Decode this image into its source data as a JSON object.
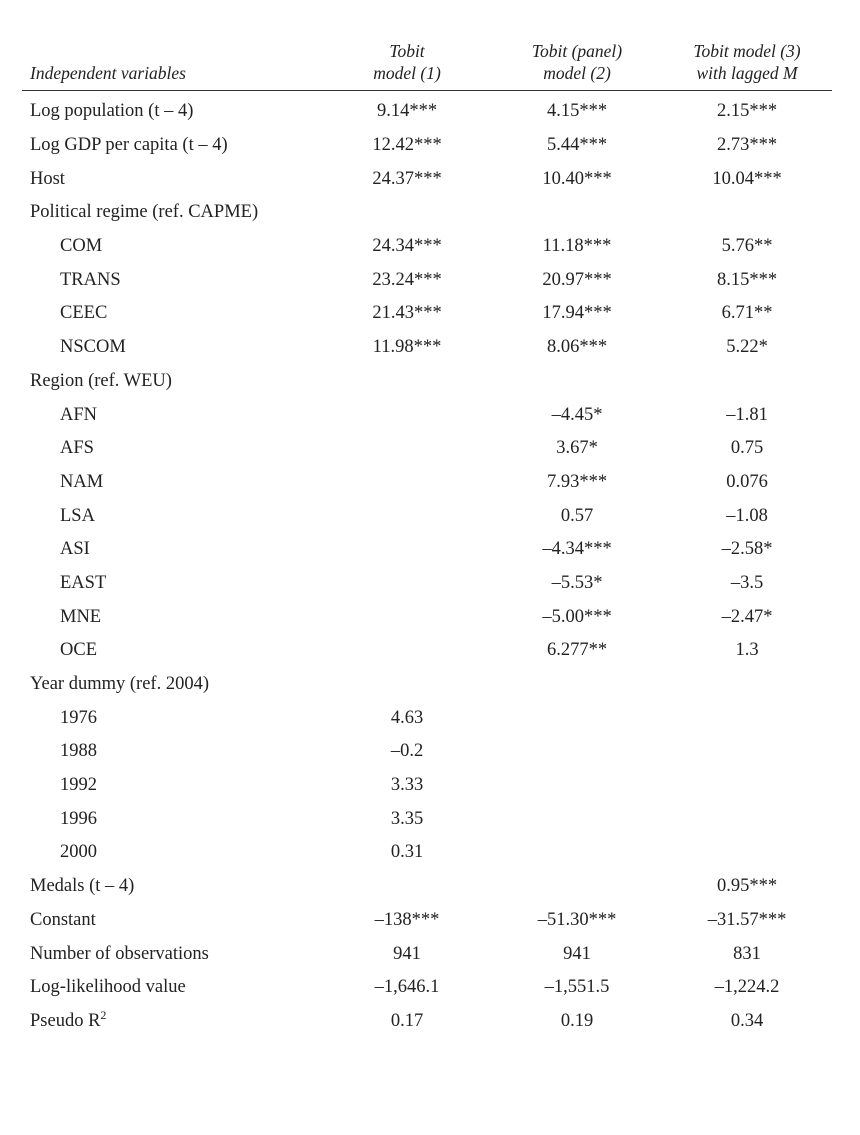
{
  "table": {
    "headers": {
      "variable": "Independent variables",
      "model1": [
        "Tobit",
        "model (1)"
      ],
      "model2": [
        "Tobit (panel)",
        "model (2)"
      ],
      "model3": [
        "Tobit model (3)",
        "with lagged M"
      ]
    },
    "rows": [
      {
        "label": "Log population (t – 4)",
        "indent": false,
        "m1": "9.14***",
        "m2": "4.15***",
        "m3": "2.15***"
      },
      {
        "label": "Log GDP per capita (t – 4)",
        "indent": false,
        "m1": "12.42***",
        "m2": "5.44***",
        "m3": "2.73***"
      },
      {
        "label": "Host",
        "indent": false,
        "m1": "24.37***",
        "m2": "10.40***",
        "m3": "10.04***"
      },
      {
        "label": "Political regime (ref. CAPME)",
        "indent": false,
        "m1": "",
        "m2": "",
        "m3": ""
      },
      {
        "label": "COM",
        "indent": true,
        "m1": "24.34***",
        "m2": "11.18***",
        "m3": "5.76**"
      },
      {
        "label": "TRANS",
        "indent": true,
        "m1": "23.24***",
        "m2": "20.97***",
        "m3": "8.15***"
      },
      {
        "label": "CEEC",
        "indent": true,
        "m1": "21.43***",
        "m2": "17.94***",
        "m3": "6.71**"
      },
      {
        "label": "NSCOM",
        "indent": true,
        "m1": "11.98***",
        "m2": "8.06***",
        "m3": "5.22*"
      },
      {
        "label": "Region (ref. WEU)",
        "indent": false,
        "m1": "",
        "m2": "",
        "m3": ""
      },
      {
        "label": "AFN",
        "indent": true,
        "m1": "",
        "m2": "–4.45*",
        "m3": "–1.81"
      },
      {
        "label": "AFS",
        "indent": true,
        "m1": "",
        "m2": "3.67*",
        "m3": "0.75"
      },
      {
        "label": "NAM",
        "indent": true,
        "m1": "",
        "m2": "7.93***",
        "m3": "0.076"
      },
      {
        "label": "LSA",
        "indent": true,
        "m1": "",
        "m2": "0.57",
        "m3": "–1.08"
      },
      {
        "label": "ASI",
        "indent": true,
        "m1": "",
        "m2": "–4.34***",
        "m3": "–2.58*"
      },
      {
        "label": "EAST",
        "indent": true,
        "m1": "",
        "m2": "–5.53*",
        "m3": "–3.5"
      },
      {
        "label": "MNE",
        "indent": true,
        "m1": "",
        "m2": "–5.00***",
        "m3": "–2.47*"
      },
      {
        "label": "OCE",
        "indent": true,
        "m1": "",
        "m2": "6.277**",
        "m3": "1.3"
      },
      {
        "label": "Year dummy (ref. 2004)",
        "indent": false,
        "m1": "",
        "m2": "",
        "m3": ""
      },
      {
        "label": "1976",
        "indent": true,
        "m1": "4.63",
        "m2": "",
        "m3": ""
      },
      {
        "label": "1988",
        "indent": true,
        "m1": "–0.2",
        "m2": "",
        "m3": ""
      },
      {
        "label": "1992",
        "indent": true,
        "m1": "3.33",
        "m2": "",
        "m3": ""
      },
      {
        "label": "1996",
        "indent": true,
        "m1": "3.35",
        "m2": "",
        "m3": ""
      },
      {
        "label": "2000",
        "indent": true,
        "m1": "0.31",
        "m2": "",
        "m3": ""
      },
      {
        "label": "Medals (t – 4)",
        "indent": false,
        "m1": "",
        "m2": "",
        "m3": "0.95***"
      },
      {
        "label": "Constant",
        "indent": false,
        "m1": "–138***",
        "m2": "–51.30***",
        "m3": "–31.57***"
      },
      {
        "label": "Number of observations",
        "indent": false,
        "m1": "941",
        "m2": "941",
        "m3": "831"
      },
      {
        "label": "Log-likelihood value",
        "indent": false,
        "m1": "–1,646.1",
        "m2": "–1,551.5",
        "m3": "–1,224.2"
      },
      {
        "label": "Pseudo R",
        "label_sup": "2",
        "indent": false,
        "m1": "0.17",
        "m2": "0.19",
        "m3": "0.34"
      }
    ]
  }
}
